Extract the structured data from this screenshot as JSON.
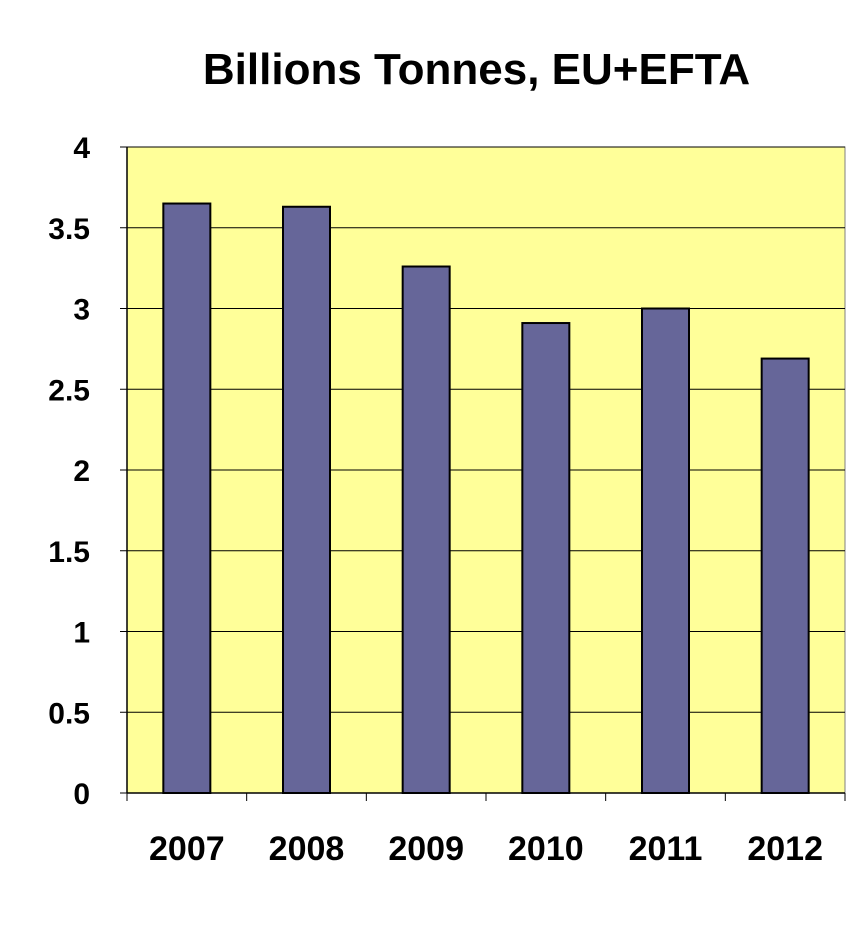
{
  "chart_data": {
    "type": "bar",
    "title": "Billions Tonnes, EU+EFTA",
    "xlabel": "",
    "ylabel": "",
    "categories": [
      "2007",
      "2008",
      "2009",
      "2010",
      "2011",
      "2012"
    ],
    "values": [
      3.65,
      3.63,
      3.26,
      2.91,
      3.0,
      2.69
    ],
    "ylim": [
      0,
      4
    ],
    "yticks": [
      "0",
      "0.5",
      "1",
      "1.5",
      "2",
      "2.5",
      "3",
      "3.5",
      "4"
    ],
    "grid": true,
    "legend": "none",
    "colors": {
      "bar": "#666699",
      "plot_background": "#FFFF99",
      "gridline": "#000000"
    }
  }
}
